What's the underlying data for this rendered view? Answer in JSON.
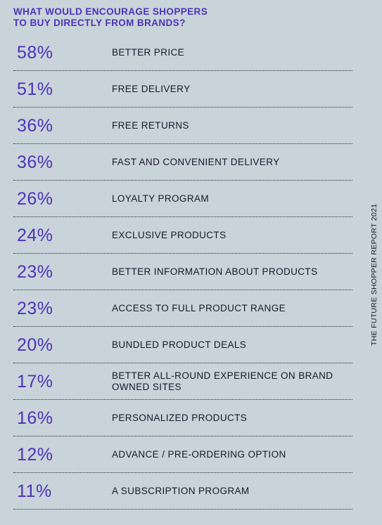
{
  "title": "WHAT WOULD ENCOURAGE SHOPPERS\nTO BUY DIRECTLY FROM BRANDS?",
  "source": "THE FUTURE SHOPPER REPORT 2021",
  "colors": {
    "accent": "#4c33b8",
    "text": "#16182a",
    "background": "#d5dfe4"
  },
  "chart_data": {
    "type": "table",
    "title": "WHAT WOULD ENCOURAGE SHOPPERS TO BUY DIRECTLY FROM BRANDS?",
    "unit": "%",
    "rows": [
      {
        "pct": "58%",
        "value": 58,
        "label": "BETTER PRICE"
      },
      {
        "pct": "51%",
        "value": 51,
        "label": "FREE DELIVERY"
      },
      {
        "pct": "36%",
        "value": 36,
        "label": "FREE RETURNS"
      },
      {
        "pct": "36%",
        "value": 36,
        "label": "FAST AND CONVENIENT DELIVERY"
      },
      {
        "pct": "26%",
        "value": 26,
        "label": "LOYALTY PROGRAM"
      },
      {
        "pct": "24%",
        "value": 24,
        "label": "EXCLUSIVE PRODUCTS"
      },
      {
        "pct": "23%",
        "value": 23,
        "label": "BETTER INFORMATION ABOUT PRODUCTS"
      },
      {
        "pct": "23%",
        "value": 23,
        "label": "ACCESS TO FULL PRODUCT RANGE"
      },
      {
        "pct": "20%",
        "value": 20,
        "label": "BUNDLED PRODUCT DEALS"
      },
      {
        "pct": "17%",
        "value": 17,
        "label": "BETTER ALL-ROUND EXPERIENCE ON BRAND OWNED SITES"
      },
      {
        "pct": "16%",
        "value": 16,
        "label": "PERSONALIZED PRODUCTS"
      },
      {
        "pct": "12%",
        "value": 12,
        "label": "ADVANCE / PRE-ORDERING OPTION"
      },
      {
        "pct": "11%",
        "value": 11,
        "label": "A SUBSCRIPTION PROGRAM"
      }
    ]
  }
}
